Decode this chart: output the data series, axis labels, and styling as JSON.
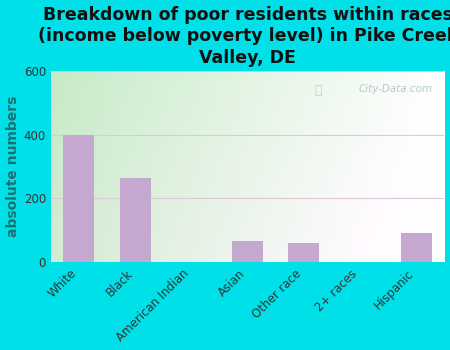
{
  "title": "Breakdown of poor residents within races\n(income below poverty level) in Pike Creek\nValley, DE",
  "categories": [
    "White",
    "Black",
    "American Indian",
    "Asian",
    "Other race",
    "2+ races",
    "Hispanic"
  ],
  "values": [
    400,
    265,
    0,
    65,
    60,
    0,
    90
  ],
  "bar_color": "#C4A8D0",
  "ylabel": "absolute numbers",
  "ylim": [
    0,
    600
  ],
  "yticks": [
    0,
    200,
    400,
    600
  ],
  "background_outer": "#00E0E8",
  "grad_left": "#c8e8c0",
  "grad_right": "#f0faf0",
  "grid_color": "#e0e0e0",
  "title_fontsize": 12.5,
  "ylabel_fontsize": 10,
  "watermark": "City-Data.com",
  "tick_fontsize": 8.5
}
